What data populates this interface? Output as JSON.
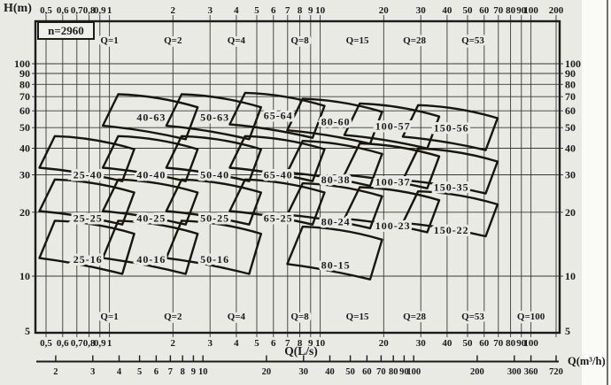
{
  "labels": {
    "h_axis": "H(m)",
    "speed": "n=2960",
    "flow_axis_ls": "Q(L/s)",
    "flow_axis_m3h": "Q(m³/h)"
  },
  "colors": {
    "background": "#e8eae3",
    "ink": "#1b1b1b",
    "grid": "#3a3a35",
    "paper_strip": "#fafaf6"
  },
  "chart_data": {
    "type": "region-map",
    "description": "Centrifugal pump selection chart (type spectrum) at n=2960 rpm; log-log grid of head H(m) versus flow Q(L/s) with quadrilateral application regions per pump model",
    "x_scale": "log",
    "y_scale": "log",
    "x_axis": {
      "unit": "L/s",
      "tick_values": [
        0.5,
        0.6,
        0.7,
        0.8,
        0.9,
        1,
        2,
        3,
        4,
        5,
        6,
        7,
        8,
        9,
        10,
        20,
        30,
        40,
        50,
        60,
        70,
        80,
        90,
        100,
        200
      ],
      "tick_labels": [
        "0,5",
        "0,6",
        "0,7",
        "0,8",
        "0,9",
        "1",
        "2",
        "3",
        "4",
        "5",
        "6",
        "7",
        "8",
        "9",
        "10",
        "20",
        "30",
        "40",
        "50",
        "60",
        "70",
        "80",
        "90",
        "100",
        "200"
      ],
      "bottom_row_omits": [
        "200"
      ]
    },
    "y_axis": {
      "unit": "m",
      "tick_values": [
        100,
        90,
        80,
        70,
        60,
        50,
        40,
        30,
        20,
        10,
        5
      ],
      "tick_labels": [
        "100",
        "90",
        "80",
        "70",
        "60",
        "50",
        "40",
        "30",
        "20",
        "10",
        "5"
      ],
      "grid_values": [
        10,
        20,
        30,
        40,
        50,
        60,
        70,
        80,
        90,
        100
      ]
    },
    "flow_markers": {
      "prefix": "Q=",
      "top_values": [
        1,
        2,
        4,
        8,
        15,
        28,
        53
      ],
      "bottom_values": [
        1,
        2,
        4,
        8,
        15,
        28,
        53,
        100
      ]
    },
    "secondary_x_axis": {
      "unit": "m³/h",
      "tick_values": [
        2,
        3,
        4,
        5,
        6,
        7,
        8,
        9,
        10,
        20,
        30,
        40,
        50,
        60,
        70,
        80,
        90,
        100,
        200,
        300,
        360,
        720
      ],
      "tick_labels": [
        "2",
        "3",
        "4",
        "5",
        "6",
        "7",
        "8",
        "9",
        "10",
        "20",
        "30",
        "40",
        "50",
        "60",
        "70",
        "80",
        "90",
        "100",
        "200",
        "300",
        "360",
        "720"
      ]
    },
    "regions": [
      {
        "model": "40-63",
        "q_ls": 2,
        "h_m": 63
      },
      {
        "model": "50-63",
        "q_ls": 4,
        "h_m": 63
      },
      {
        "model": "65-64",
        "q_ls": 8,
        "h_m": 64
      },
      {
        "model": "80-60",
        "q_ls": 15,
        "h_m": 60
      },
      {
        "model": "100-57",
        "q_ls": 28,
        "h_m": 57
      },
      {
        "model": "150-56",
        "q_ls": 53,
        "h_m": 56
      },
      {
        "model": "25-40",
        "q_ls": 1,
        "h_m": 40
      },
      {
        "model": "40-40",
        "q_ls": 2,
        "h_m": 40
      },
      {
        "model": "50-40",
        "q_ls": 4,
        "h_m": 40
      },
      {
        "model": "65-40",
        "q_ls": 8,
        "h_m": 40
      },
      {
        "model": "80-38",
        "q_ls": 15,
        "h_m": 38
      },
      {
        "model": "100-37",
        "q_ls": 28,
        "h_m": 37
      },
      {
        "model": "150-35",
        "q_ls": 53,
        "h_m": 35
      },
      {
        "model": "25-25",
        "q_ls": 1,
        "h_m": 25
      },
      {
        "model": "40-25",
        "q_ls": 2,
        "h_m": 25
      },
      {
        "model": "50-25",
        "q_ls": 4,
        "h_m": 25
      },
      {
        "model": "65-25",
        "q_ls": 8,
        "h_m": 25
      },
      {
        "model": "80-24",
        "q_ls": 15,
        "h_m": 24
      },
      {
        "model": "100-23",
        "q_ls": 28,
        "h_m": 23
      },
      {
        "model": "150-22",
        "q_ls": 53,
        "h_m": 22
      },
      {
        "model": "25-16",
        "q_ls": 1,
        "h_m": 16
      },
      {
        "model": "40-16",
        "q_ls": 2,
        "h_m": 16
      },
      {
        "model": "50-16",
        "q_ls": 4,
        "h_m": 16
      },
      {
        "model": "80-15",
        "q_ls": 15,
        "h_m": 15
      }
    ],
    "xlim": [
      0.44,
      207
    ],
    "ylim": [
      5,
      158
    ],
    "grid": "on"
  }
}
